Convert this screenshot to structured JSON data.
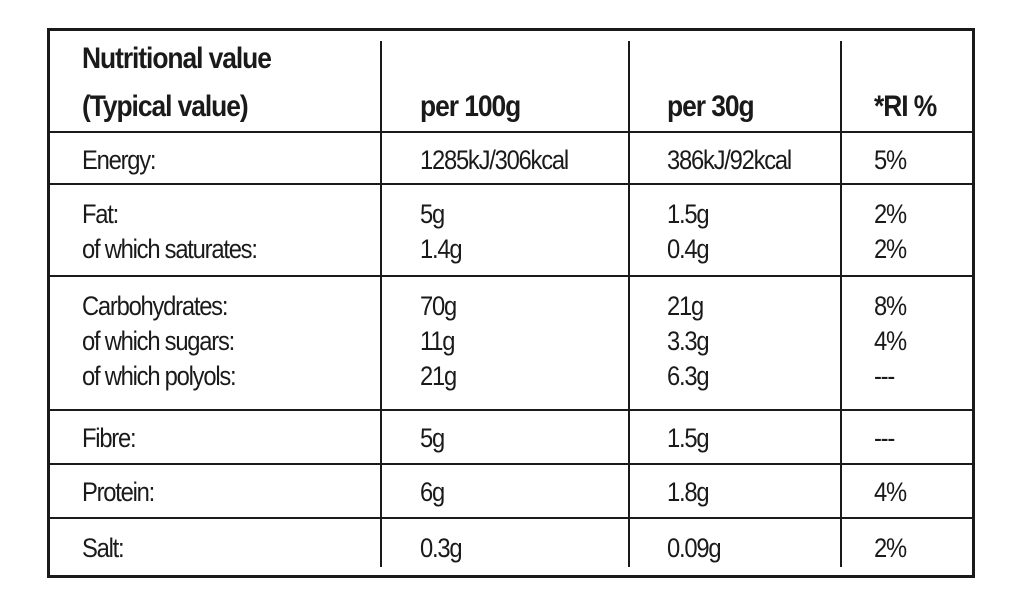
{
  "table": {
    "header": {
      "col1_line1": "Nutritional value",
      "col1_line2": "(Typical value)",
      "col2": "per 100g",
      "col3": "per 30g",
      "col4": "*RI %"
    },
    "rows": [
      {
        "name": "energy",
        "labels": [
          "Energy:"
        ],
        "per100g": [
          "1285kJ/306kcal"
        ],
        "per30g": [
          "386kJ/92kcal"
        ],
        "ri": [
          "5%"
        ]
      },
      {
        "name": "fat",
        "labels": [
          "Fat:",
          "of which saturates:"
        ],
        "per100g": [
          "5g",
          "1.4g"
        ],
        "per30g": [
          "1.5g",
          "0.4g"
        ],
        "ri": [
          "2%",
          "2%"
        ]
      },
      {
        "name": "carbohydrates",
        "labels": [
          "Carbohydrates:",
          "of which sugars:",
          "of which polyols:"
        ],
        "per100g": [
          "70g",
          "11g",
          "21g"
        ],
        "per30g": [
          "21g",
          "3.3g",
          "6.3g"
        ],
        "ri": [
          "8%",
          "4%",
          "---"
        ]
      },
      {
        "name": "fibre",
        "labels": [
          "Fibre:"
        ],
        "per100g": [
          "5g"
        ],
        "per30g": [
          "1.5g"
        ],
        "ri": [
          "---"
        ]
      },
      {
        "name": "protein",
        "labels": [
          "Protein:"
        ],
        "per100g": [
          "6g"
        ],
        "per30g": [
          "1.8g"
        ],
        "ri": [
          "4%"
        ]
      },
      {
        "name": "salt",
        "labels": [
          "Salt:"
        ],
        "per100g": [
          "0.3g"
        ],
        "per30g": [
          "0.09g"
        ],
        "ri": [
          "2%"
        ]
      }
    ]
  }
}
